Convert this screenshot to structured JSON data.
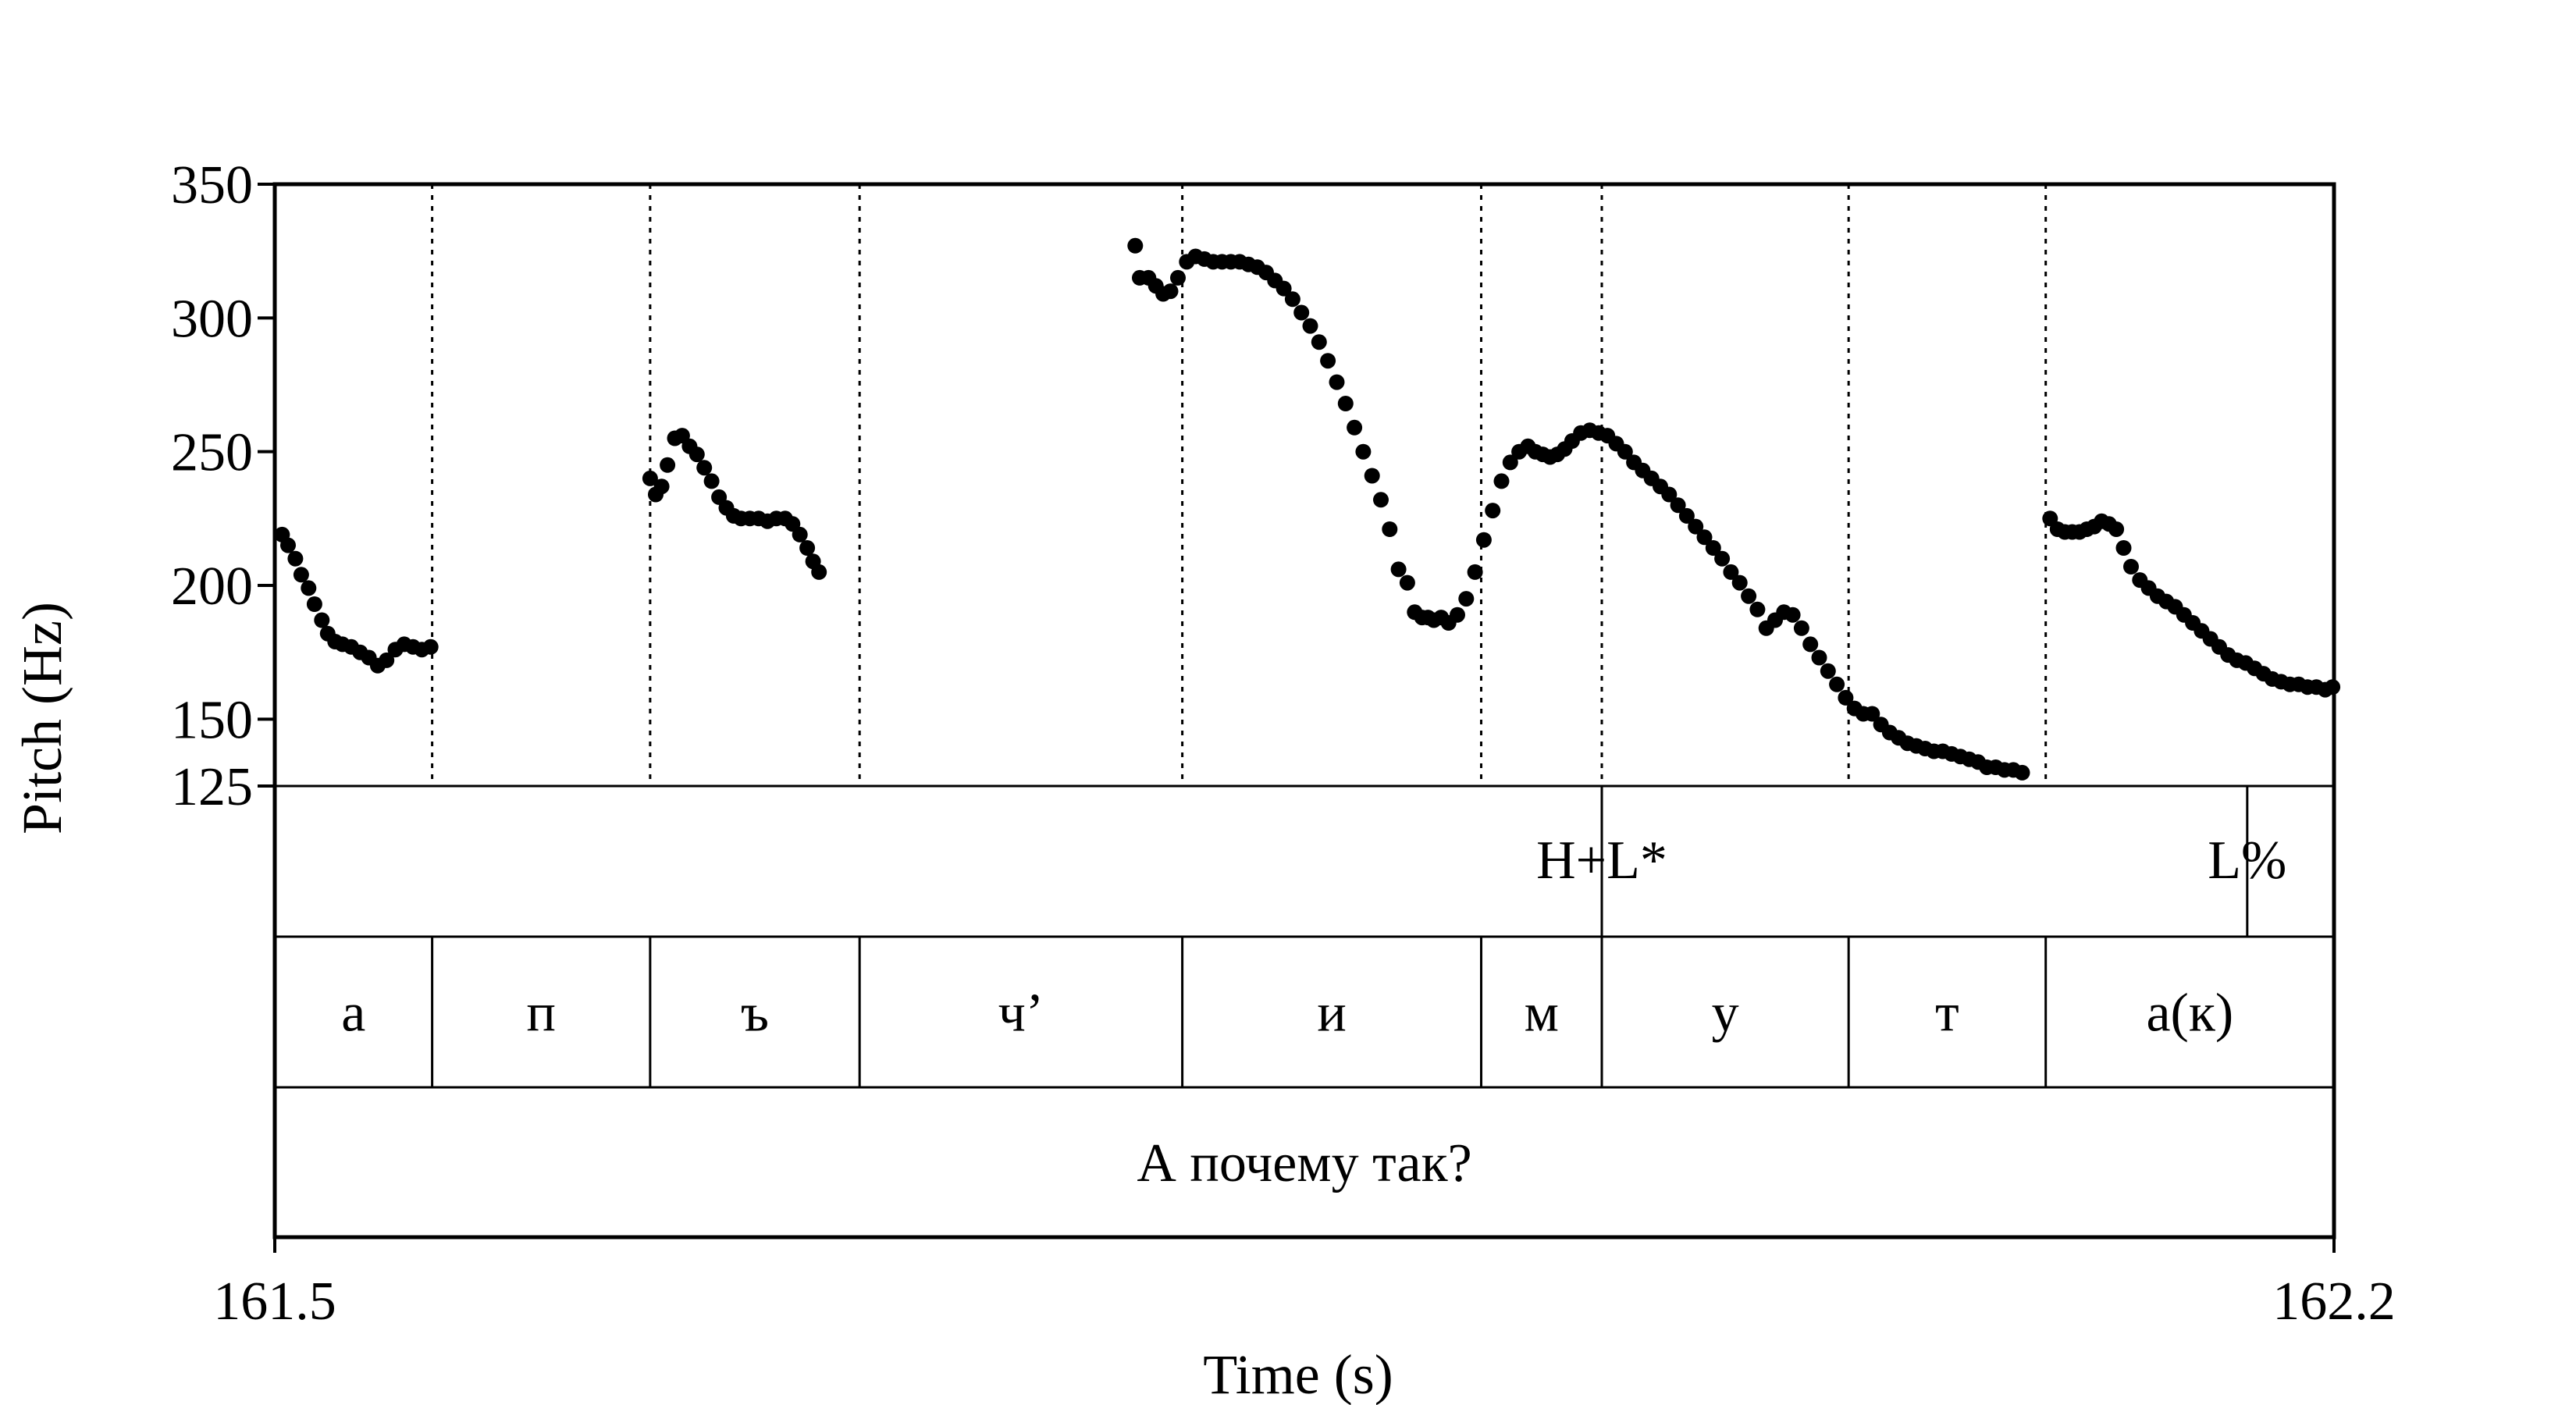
{
  "chart_data": {
    "type": "scatter",
    "xlabel": "Time (s)",
    "ylabel": "Pitch (Hz)",
    "xlim": [
      161.5,
      162.2
    ],
    "ylim": [
      125,
      350
    ],
    "x_ticks": [
      "161.5",
      "162.2"
    ],
    "y_ticks": [
      {
        "value": 350,
        "label": "350"
      },
      {
        "value": 300,
        "label": "300"
      },
      {
        "value": 250,
        "label": "250"
      },
      {
        "value": 200,
        "label": "200"
      },
      {
        "value": 150,
        "label": "150"
      },
      {
        "value": 125,
        "label": "125"
      }
    ],
    "segment_boundaries": [
      161.5535,
      161.6276,
      161.6988,
      161.8085,
      161.9101,
      161.9511,
      162.035,
      162.102
    ],
    "pitch_segments": [
      {
        "x": [
          161.5025,
          161.5045,
          161.507,
          161.509,
          161.5115,
          161.5135,
          161.516,
          161.518,
          161.5205,
          161.523,
          161.526,
          161.529,
          161.532,
          161.535,
          161.538,
          161.541,
          161.544,
          161.547,
          161.55,
          161.553
        ],
        "y": [
          219,
          215,
          210,
          204,
          199,
          193,
          187,
          182,
          179,
          178,
          177,
          175,
          173,
          170,
          172,
          176,
          178,
          177,
          176,
          177
        ]
      },
      {
        "x": [
          161.6276,
          161.6295,
          161.6315,
          161.6335,
          161.636,
          161.6385,
          161.641,
          161.6435,
          161.646,
          161.6485,
          161.651,
          161.6535,
          161.656,
          161.6585,
          161.6615,
          161.6645,
          161.6675,
          161.6705,
          161.6735,
          161.676,
          161.6785,
          161.681,
          161.683,
          161.685
        ],
        "y": [
          240,
          234,
          237,
          245,
          255,
          256,
          252,
          249,
          244,
          239,
          233,
          229,
          226,
          225,
          225,
          225,
          224,
          225,
          225,
          223,
          219,
          214,
          209,
          205
        ]
      },
      {
        "x": [
          161.7925,
          161.794,
          161.797,
          161.7995,
          161.802,
          161.8045,
          161.807,
          161.81,
          161.813,
          161.816,
          161.819,
          161.822,
          161.825,
          161.828,
          161.831,
          161.834,
          161.837,
          161.84,
          161.843,
          161.846,
          161.849,
          161.852,
          161.855,
          161.858,
          161.861,
          161.864,
          161.867,
          161.87,
          161.873,
          161.876,
          161.879,
          161.882,
          161.885,
          161.8875,
          161.89,
          161.892,
          161.894,
          161.8965,
          161.899,
          161.902,
          161.905,
          161.908,
          161.911,
          161.914,
          161.917,
          161.92,
          161.923,
          161.926,
          161.9285,
          161.931,
          161.9335,
          161.936,
          161.9385,
          161.941,
          161.944,
          161.947,
          161.95,
          161.953,
          161.956,
          161.959,
          161.962,
          161.965,
          161.968,
          161.971,
          161.974,
          161.977,
          161.98,
          161.983,
          161.986,
          161.989,
          161.992,
          161.995,
          161.998,
          162.001,
          162.004,
          162.007,
          162.01,
          162.013,
          162.016,
          162.019,
          162.022,
          162.025,
          162.028,
          162.031,
          162.034,
          162.037,
          162.04,
          162.043,
          162.046,
          162.049,
          162.052,
          162.055,
          162.058,
          162.061,
          162.064,
          162.067,
          162.07,
          162.073,
          162.076,
          162.079,
          162.082,
          162.085,
          162.088,
          162.091,
          162.094
        ],
        "y": [
          327,
          315,
          315,
          312,
          309,
          310,
          315,
          321,
          323,
          322,
          321,
          321,
          321,
          321,
          320,
          319,
          317,
          314,
          311,
          307,
          302,
          297,
          291,
          284,
          276,
          268,
          259,
          250,
          241,
          232,
          221,
          206,
          201,
          190,
          188,
          188,
          187,
          188,
          186,
          189,
          195,
          205,
          217,
          228,
          239,
          246,
          250,
          252,
          250,
          249,
          248,
          249,
          251,
          254,
          257,
          258,
          257,
          256,
          253,
          250,
          246,
          243,
          240,
          237,
          234,
          230,
          226,
          222,
          218,
          214,
          210,
          205,
          201,
          196,
          191,
          184,
          187,
          190,
          189,
          184,
          178,
          173,
          168,
          163,
          158,
          154,
          152,
          152,
          148,
          145,
          143,
          141,
          140,
          139,
          138,
          138,
          137,
          136,
          135,
          134,
          132,
          132,
          131,
          131,
          130
        ]
      },
      {
        "x": [
          162.1035,
          162.106,
          162.1085,
          162.111,
          162.1135,
          162.116,
          162.1185,
          162.121,
          162.1235,
          162.126,
          162.1285,
          162.131,
          162.134,
          162.137,
          162.14,
          162.143,
          162.146,
          162.149,
          162.152,
          162.155,
          162.158,
          162.161,
          162.164,
          162.167,
          162.17,
          162.173,
          162.176,
          162.179,
          162.182,
          162.185,
          162.188,
          162.191,
          162.194,
          162.197,
          162.1995
        ],
        "y": [
          225,
          221,
          220,
          220,
          220,
          221,
          222,
          224,
          223,
          221,
          214,
          207,
          202,
          199,
          196,
          194,
          192,
          189,
          186,
          183,
          180,
          177,
          174,
          172,
          171,
          169,
          167,
          165,
          164,
          163,
          163,
          162,
          162,
          161,
          162
        ]
      }
    ],
    "tiers": [
      {
        "name": "tones",
        "labels": [
          {
            "text": "H+L*",
            "time": 161.9511
          },
          {
            "text": "L%",
            "time": 162.1705
          }
        ]
      },
      {
        "name": "segments",
        "intervals": [
          {
            "text": "а",
            "start": 161.5,
            "end": 161.5535
          },
          {
            "text": "п",
            "start": 161.5535,
            "end": 161.6276
          },
          {
            "text": "ъ",
            "start": 161.6276,
            "end": 161.6988
          },
          {
            "text": "ч’",
            "start": 161.6988,
            "end": 161.8085
          },
          {
            "text": "и",
            "start": 161.8085,
            "end": 161.9101
          },
          {
            "text": "м",
            "start": 161.9101,
            "end": 161.9511
          },
          {
            "text": "у",
            "start": 161.9511,
            "end": 162.035
          },
          {
            "text": "т",
            "start": 162.035,
            "end": 162.102
          },
          {
            "text": "а(к)",
            "start": 162.102,
            "end": 162.2
          }
        ]
      },
      {
        "name": "sentence",
        "intervals": [
          {
            "text": "А почему так?",
            "start": 161.5,
            "end": 162.2
          }
        ]
      }
    ]
  }
}
